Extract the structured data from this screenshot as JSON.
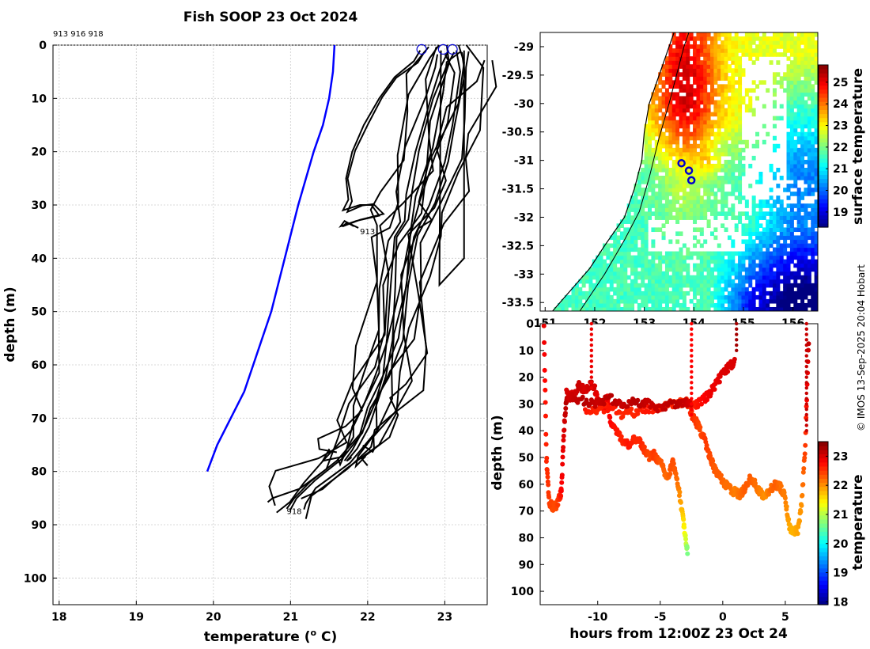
{
  "title": "Fish SOOP 23 Oct 2024",
  "credit": "© IMOS 13-Sep-2025 20:04 Hobart",
  "chart_data": [
    {
      "id": "profiles",
      "type": "line",
      "title": "Fish SOOP 23 Oct 2024",
      "xlabel": "temperature (",
      "xlabel_unit": "o",
      "xlabel_tail": " C)",
      "ylabel": "depth (m)",
      "xlim": [
        17.92,
        23.55
      ],
      "ylim": [
        105,
        0
      ],
      "xticks": [
        18,
        19,
        20,
        21,
        22,
        23
      ],
      "yticks": [
        0,
        10,
        20,
        30,
        40,
        50,
        60,
        70,
        80,
        90,
        100
      ],
      "grid": true,
      "header_ids": "913 916 918",
      "climatology": {
        "color": "#0000ff",
        "temp": [
          21.57,
          21.55,
          21.5,
          21.42,
          21.3,
          21.1,
          20.75,
          20.4,
          20.05,
          19.92
        ],
        "depth": [
          0,
          5,
          10,
          15,
          20,
          30,
          50,
          65,
          75,
          80
        ]
      },
      "profiles": [
        {
          "id": "913",
          "label": "913",
          "label_temp": 21.9,
          "label_depth": 35.5,
          "temp": [
            22.68,
            22.6,
            22.35,
            22.15,
            21.95,
            21.8,
            21.72,
            21.75,
            21.68,
            21.9,
            22.05,
            22.15,
            21.85,
            21.65,
            21.7,
            21.82
          ],
          "depth": [
            1,
            3,
            6,
            10,
            15,
            20,
            25,
            29,
            31,
            30,
            30,
            32,
            33,
            34,
            33,
            34
          ]
        },
        {
          "id": "916",
          "label": "",
          "temp": [
            23.05,
            22.95,
            22.82,
            22.62,
            22.5,
            22.48,
            22.35,
            22.3,
            22.25,
            22.2,
            22.1,
            21.95,
            21.8,
            21.7,
            21.75
          ],
          "depth": [
            1,
            4,
            10,
            20,
            28,
            33,
            36,
            45,
            55,
            62,
            67,
            72,
            76,
            78,
            77
          ]
        },
        {
          "id": "918",
          "label": "918",
          "label_temp": 20.95,
          "label_depth": 88,
          "temp": [
            23.15,
            23.2,
            23.1,
            23.0,
            22.8,
            22.6,
            22.5,
            22.4,
            22.2,
            22.0,
            21.9,
            21.6,
            21.25,
            21.05,
            20.95
          ],
          "depth": [
            1,
            5,
            15,
            22,
            30,
            36,
            45,
            55,
            62,
            68,
            73,
            78,
            82,
            85,
            87
          ]
        }
      ],
      "surface_markers": [
        {
          "temp": 22.7,
          "depth": 0.8
        },
        {
          "temp": 22.98,
          "depth": 0.8
        },
        {
          "temp": 23.1,
          "depth": 0.8
        }
      ]
    },
    {
      "id": "map",
      "type": "heatmap",
      "xlim": [
        150.9,
        156.5
      ],
      "ylim": [
        -33.65,
        -28.75
      ],
      "xticks": [
        151,
        152,
        153,
        154,
        155,
        156
      ],
      "xtick_labels": [
        "151",
        "152",
        "153",
        "154",
        "155",
        "156"
      ],
      "yticks": [
        -29,
        -29.5,
        -30,
        -30.5,
        -31,
        -31.5,
        -32,
        -32.5,
        -33,
        -33.5
      ],
      "ytick_labels": [
        "-29",
        "-29.5",
        "-30",
        "-30.5",
        "-31",
        "-31.5",
        "-32",
        "-32.5",
        "-33",
        "-33.5"
      ],
      "colorbar": {
        "label": "surface temperature",
        "range": [
          18.3,
          25.8
        ],
        "ticks": [
          19,
          20,
          21,
          22,
          23,
          24,
          25
        ]
      },
      "coastline": {
        "lon": [
          151.15,
          151.5,
          151.9,
          152.2,
          152.6,
          152.8,
          152.95,
          153.0,
          153.1,
          153.3,
          153.5,
          153.6
        ],
        "lat": [
          -33.65,
          -33.3,
          -32.9,
          -32.5,
          -32.0,
          -31.5,
          -31.0,
          -30.5,
          -30.0,
          -29.5,
          -29.0,
          -28.75
        ]
      },
      "shelf_break": {
        "lon": [
          151.7,
          152.2,
          152.6,
          152.9,
          153.1,
          153.3,
          153.5,
          153.65,
          153.8,
          153.9
        ],
        "lat": [
          -33.65,
          -33.0,
          -32.4,
          -31.9,
          -31.3,
          -30.6,
          -30.0,
          -29.5,
          -29.0,
          -28.75
        ]
      },
      "fish_stations": [
        {
          "id": "913",
          "lon": 153.75,
          "lat": -31.05
        },
        {
          "id": "916",
          "lon": 153.9,
          "lat": -31.18
        },
        {
          "id": "918",
          "lon": 153.95,
          "lat": -31.35
        }
      ]
    },
    {
      "id": "timeseries",
      "type": "scatter",
      "xlabel": "hours from 12:00Z 23 Oct 24",
      "ylabel": "depth (m)",
      "xlim": [
        -14.6,
        7.6
      ],
      "ylim": [
        105,
        0
      ],
      "xticks": [
        -10,
        -5,
        0,
        5
      ],
      "yticks": [
        0,
        10,
        20,
        30,
        40,
        50,
        60,
        70,
        80,
        90,
        100
      ],
      "colorbar": {
        "label": "temperature",
        "range": [
          17.9,
          23.5
        ],
        "ticks": [
          18,
          19,
          20,
          21,
          22,
          23
        ]
      },
      "tracks": [
        {
          "hours": [
            -14.3,
            -14.1,
            -13.9,
            -13.6,
            -13.3,
            -13.0,
            -12.9,
            -12.7,
            -12.5,
            -12.3,
            -12.0,
            -11.5,
            -11.0,
            -10.5,
            -10.2,
            -10.0,
            -9.7,
            -9.5,
            -9.2,
            -9.0,
            -8.5,
            -8.0,
            -7.5,
            -7.0,
            -6.5,
            -6.2,
            -5.8,
            -5.5,
            -5.2,
            -4.8,
            -4.5,
            -4.2,
            -4.0,
            -3.8,
            -3.5,
            -3.2,
            -3.0,
            -2.8
          ],
          "depth": [
            2,
            50,
            66,
            69,
            68,
            64,
            62,
            40,
            28,
            27,
            27,
            23,
            25,
            22,
            25,
            28,
            30,
            32,
            28,
            36,
            40,
            44,
            45,
            43,
            45,
            48,
            50,
            49,
            51,
            53,
            58,
            55,
            52,
            55,
            62,
            72,
            80,
            86
          ],
          "temp": [
            22.9,
            22.6,
            22.5,
            22.4,
            22.4,
            22.6,
            22.8,
            23.0,
            23.2,
            23.1,
            23.0,
            23.1,
            23.0,
            23.1,
            23.0,
            22.9,
            22.8,
            22.8,
            22.9,
            22.8,
            22.7,
            22.6,
            22.7,
            22.6,
            22.6,
            22.5,
            22.4,
            22.5,
            22.4,
            22.3,
            22.2,
            22.3,
            22.4,
            22.3,
            22.1,
            21.7,
            21.3,
            20.6
          ]
        },
        {
          "hours": [
            -2.6,
            -2.2,
            -1.8,
            -1.4,
            -1.0,
            -0.6,
            -0.2,
            0.2,
            0.6,
            1.0,
            1.4,
            1.8,
            2.2,
            2.6,
            3.0,
            3.4,
            3.8,
            4.2,
            4.6,
            5.0,
            5.3,
            5.6,
            6.0,
            6.3,
            6.6,
            6.9
          ],
          "depth": [
            33,
            36,
            40,
            44,
            50,
            55,
            57,
            60,
            62,
            63,
            64,
            61,
            58,
            60,
            63,
            65,
            62,
            60,
            61,
            65,
            75,
            78,
            77,
            68,
            45,
            2
          ],
          "temp": [
            22.6,
            22.5,
            22.4,
            22.5,
            22.4,
            22.3,
            22.3,
            22.2,
            22.2,
            22.1,
            22.2,
            22.3,
            22.3,
            22.2,
            22.1,
            22.0,
            22.2,
            22.3,
            22.2,
            22.1,
            21.9,
            21.8,
            21.9,
            22.0,
            22.5,
            23.2
          ]
        },
        {
          "hours": [
            -11.0,
            -10.0,
            -9.0,
            -8.0,
            -7.0,
            -6.0,
            -5.0,
            -4.0,
            -3.0,
            -2.5,
            -2.0,
            -1.5,
            -1.0,
            -0.5,
            0.0,
            0.5,
            1.0
          ],
          "depth": [
            32,
            33,
            31,
            34,
            33,
            32,
            31,
            30,
            29,
            31,
            30,
            28,
            26,
            22,
            19,
            16,
            14
          ],
          "temp": [
            22.7,
            22.6,
            22.7,
            22.6,
            22.6,
            22.7,
            22.6,
            22.6,
            22.5,
            22.6,
            22.7,
            22.8,
            22.9,
            22.9,
            23.0,
            23.0,
            23.0
          ]
        },
        {
          "hours": [
            -12.5,
            -12.0,
            -11.0,
            -10.0,
            -9.0,
            -8.0,
            -7.0,
            -6.0,
            -5.0,
            -4.0,
            -3.0,
            -2.5
          ],
          "depth": [
            26,
            28,
            29,
            30,
            28,
            31,
            29,
            30,
            32,
            30,
            29,
            30
          ],
          "temp": [
            23.0,
            23.1,
            23.2,
            23.1,
            23.2,
            23.1,
            23.2,
            23.1,
            23.1,
            23.2,
            23.1,
            23.0
          ]
        }
      ],
      "casts": [
        {
          "hour": -10.5,
          "depth_from": 0,
          "depth_to": 24,
          "temp": 22.9
        },
        {
          "hour": -2.5,
          "depth_from": 0,
          "depth_to": 34,
          "temp": 22.8
        },
        {
          "hour": 1.1,
          "depth_from": 0,
          "depth_to": 10,
          "temp": 23.3
        },
        {
          "hour": 6.7,
          "depth_from": 0,
          "depth_to": 40,
          "temp": 23.1
        }
      ]
    }
  ]
}
